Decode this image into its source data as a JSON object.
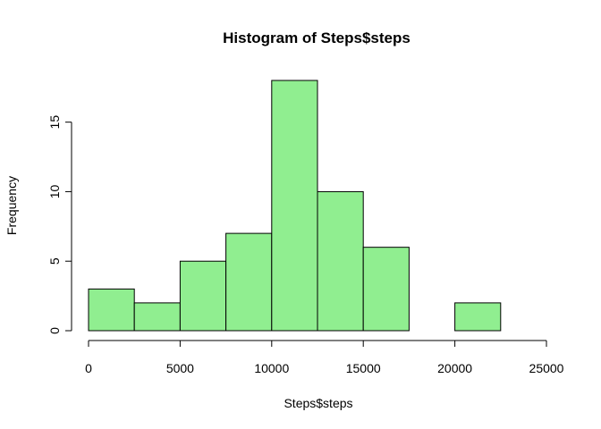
{
  "chart_data": {
    "type": "bar",
    "title": "Histogram of Steps$steps",
    "xlabel": "Steps$steps",
    "ylabel": "Frequency",
    "bin_edges": [
      0,
      2500,
      5000,
      7500,
      10000,
      12500,
      15000,
      17500,
      20000,
      22500,
      25000
    ],
    "values": [
      3,
      2,
      5,
      7,
      18,
      10,
      6,
      0,
      2,
      0
    ],
    "xlim": [
      0,
      25000
    ],
    "ylim": [
      0,
      18
    ],
    "x_ticks": [
      0,
      5000,
      10000,
      15000,
      20000,
      25000
    ],
    "y_ticks": [
      0,
      5,
      10,
      15
    ],
    "bar_color": "#90EE90",
    "grid": false
  }
}
